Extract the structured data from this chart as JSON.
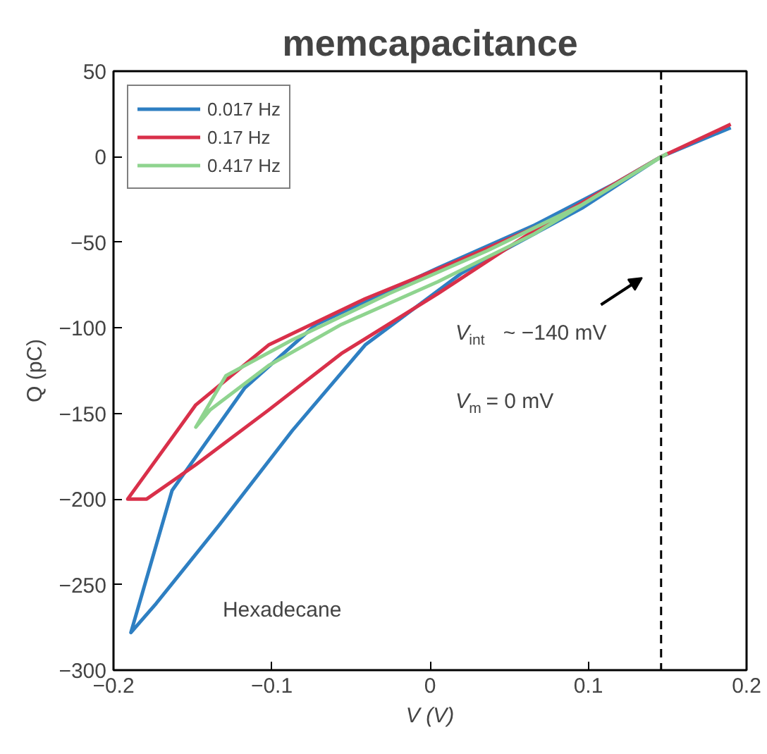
{
  "chart_data": {
    "type": "line",
    "title": "memcapacitance",
    "xlabel": "V (V)",
    "ylabel": "Q (pC)",
    "xlim": [
      -0.2,
      0.2
    ],
    "xticks": [
      -0.2,
      -0.1,
      0,
      0.1,
      0.2
    ],
    "ylim": [
      -300,
      50
    ],
    "yticks": [
      -300,
      -250,
      -200,
      -150,
      -100,
      -50,
      0,
      50
    ],
    "grid": false,
    "legend": "top left",
    "marker": "none",
    "line_style": "solid",
    "series": [
      {
        "name": "0.017 Hz",
        "color": "#2e7fc2",
        "x": [
          0.19,
          0.146,
          0.096,
          0.02,
          -0.041,
          -0.087,
          -0.133,
          -0.173,
          -0.189,
          -0.163,
          -0.117,
          -0.072,
          0.005,
          0.066,
          0.118,
          0.146
        ],
        "values": [
          17,
          0,
          -30,
          -68,
          -110,
          -160,
          -215,
          -261,
          -278,
          -195,
          -135,
          -98,
          -65,
          -40,
          -15,
          0
        ]
      },
      {
        "name": "0.17 Hz",
        "color": "#d9304a",
        "x": [
          0.19,
          0.146,
          0.066,
          0.005,
          -0.056,
          -0.102,
          -0.148,
          -0.179,
          -0.191,
          -0.148,
          -0.102,
          -0.041,
          0.02,
          0.082,
          0.146
        ],
        "values": [
          19,
          0,
          -43,
          -80,
          -115,
          -148,
          -180,
          -200,
          -200,
          -145,
          -110,
          -83,
          -60,
          -35,
          0
        ]
      },
      {
        "name": "0.417 Hz",
        "color": "#8fd48f",
        "x": [
          0.15,
          0.066,
          0.005,
          -0.056,
          -0.102,
          -0.139,
          -0.148,
          -0.129,
          -0.087,
          -0.026,
          0.036,
          0.096,
          0.146
        ],
        "values": [
          2,
          -45,
          -73,
          -98,
          -122,
          -148,
          -158,
          -128,
          -107,
          -80,
          -55,
          -28,
          0
        ]
      }
    ],
    "ref_lines": [
      {
        "axis": "x",
        "value": 0.146,
        "label": null,
        "color": "#000000",
        "line_style": "dashed"
      }
    ],
    "annotations": [
      "V$_{int}$ ~ −140 mV",
      "V$_{m}$ = 0 mV",
      "Hexadecane"
    ]
  }
}
